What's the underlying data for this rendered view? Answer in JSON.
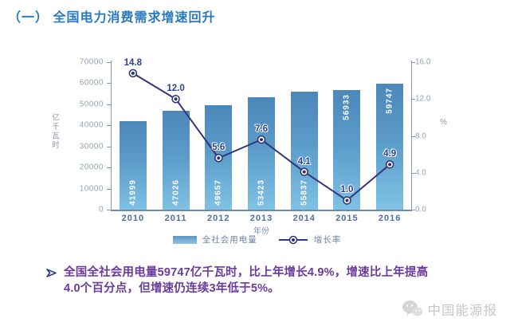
{
  "page": {
    "title": "（一） 全国电力消费需求增速回升"
  },
  "chart_data": {
    "type": "bar+line",
    "categories": [
      "2010",
      "2011",
      "2012",
      "2013",
      "2014",
      "2015",
      "2016"
    ],
    "series": [
      {
        "name": "全社会用电量",
        "type": "bar",
        "axis": "left",
        "values": [
          41999,
          47026,
          49657,
          53423,
          55837,
          56933,
          59747
        ],
        "value_label_position": [
          "bottom",
          "bottom",
          "bottom",
          "bottom",
          "bottom",
          "top",
          "top"
        ]
      },
      {
        "name": "增长率",
        "type": "line",
        "axis": "right",
        "values": [
          14.8,
          12.0,
          5.6,
          7.6,
          4.1,
          1.0,
          4.9
        ],
        "value_labels": [
          "14.8",
          "12.0",
          "5.6",
          "7.6",
          "4.1",
          "1.0",
          "4.9"
        ]
      }
    ],
    "left_axis": {
      "label": "亿千瓦时",
      "min": 0,
      "max": 70000,
      "step": 10000,
      "ticks": [
        "0",
        "10000",
        "20000",
        "30000",
        "40000",
        "50000",
        "60000",
        "70000"
      ]
    },
    "right_axis": {
      "label": "%",
      "min": 0,
      "max": 16,
      "step": 4,
      "ticks": [
        "0.0",
        "4.0",
        "8.0",
        "12.0",
        "16.0"
      ]
    },
    "xlabel": "年份",
    "legend_position": "bottom",
    "grid": false,
    "colors": {
      "bar_top": "#4c87ba",
      "bar_bottom": "#7fc2e4",
      "line": "#32357e",
      "marker": "#2c2f7a",
      "title": "#2979be",
      "note": "#6b3a9e"
    }
  },
  "note": {
    "text": "全国全社会用电量59747亿千瓦时，比上年增长4.9%，增速比上年提高4.0个百分点，但增速仍连续3年低于5%。"
  },
  "watermark": {
    "text": "中国能源报"
  }
}
